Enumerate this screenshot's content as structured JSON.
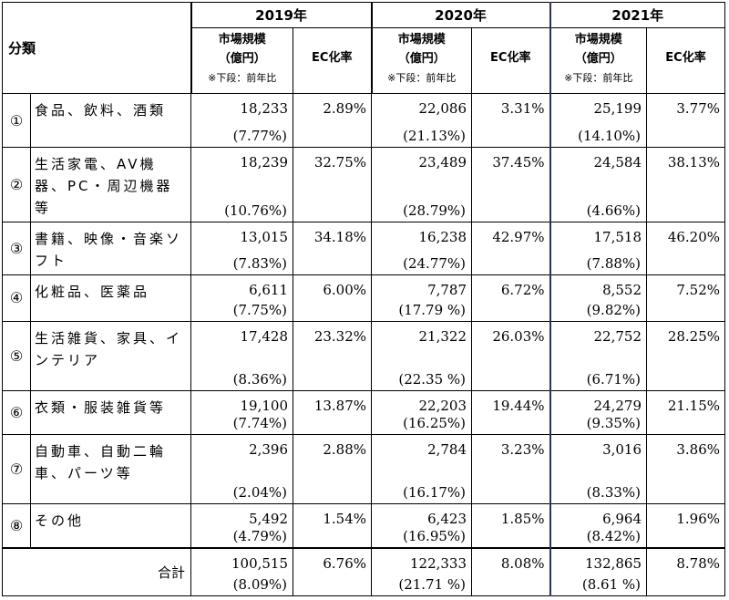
{
  "header": {
    "category_label": "分類",
    "years": [
      "2019年",
      "2020年",
      "2021年"
    ],
    "market_line1": "市場規模",
    "market_line2": "（億円）",
    "market_note": "※下段：前年比",
    "ec_label": "EC化率"
  },
  "rows": [
    {
      "num": "①",
      "name": "食品、飲料、酒類",
      "y2019": {
        "value": "18,233",
        "yoy": "(7.77%)",
        "ec": "2.89%"
      },
      "y2020": {
        "value": "22,086",
        "yoy": "(21.13%)",
        "ec": "3.31%"
      },
      "y2021": {
        "value": "25,199",
        "yoy": "(14.10%)",
        "ec": "3.77%"
      }
    },
    {
      "num": "②",
      "name": "生活家電、AV機器、PC・周辺機器等",
      "y2019": {
        "value": "18,239",
        "yoy": "(10.76%)",
        "ec": "32.75%"
      },
      "y2020": {
        "value": "23,489",
        "yoy": "(28.79%)",
        "ec": "37.45%"
      },
      "y2021": {
        "value": "24,584",
        "yoy": "(4.66%)",
        "ec": "38.13%"
      }
    },
    {
      "num": "③",
      "name": "書籍、映像・音楽ソフト",
      "y2019": {
        "value": "13,015",
        "yoy": "(7.83%)",
        "ec": "34.18%"
      },
      "y2020": {
        "value": "16,238",
        "yoy": "(24.77%)",
        "ec": "42.97%"
      },
      "y2021": {
        "value": "17,518",
        "yoy": "(7.88%)",
        "ec": "46.20%"
      }
    },
    {
      "num": "④",
      "name": "化粧品、医薬品",
      "y2019": {
        "value": "6,611",
        "yoy": "(7.75%)",
        "ec": "6.00%"
      },
      "y2020": {
        "value": "7,787",
        "yoy": "(17.79 %)",
        "ec": "6.72%"
      },
      "y2021": {
        "value": "8,552",
        "yoy": "(9.82%)",
        "ec": "7.52%"
      }
    },
    {
      "num": "⑤",
      "name": "生活雑貨、家具、インテリア",
      "y2019": {
        "value": "17,428",
        "yoy": "(8.36%)",
        "ec": "23.32%"
      },
      "y2020": {
        "value": "21,322",
        "yoy": "(22.35 %)",
        "ec": "26.03%"
      },
      "y2021": {
        "value": "22,752",
        "yoy": "(6.71%)",
        "ec": "28.25%"
      }
    },
    {
      "num": "⑥",
      "name": "衣類・服装雑貨等",
      "y2019": {
        "value": "19,100",
        "yoy": "(7.74%)",
        "ec": "13.87%"
      },
      "y2020": {
        "value": "22,203",
        "yoy": "(16.25%)",
        "ec": "19.44%"
      },
      "y2021": {
        "value": "24,279",
        "yoy": "(9.35%)",
        "ec": "21.15%"
      }
    },
    {
      "num": "⑦",
      "name": "自動車、自動二輪車、パーツ等",
      "y2019": {
        "value": "2,396",
        "yoy": "(2.04%)",
        "ec": "2.88%"
      },
      "y2020": {
        "value": "2,784",
        "yoy": "(16.17%)",
        "ec": "3.23%"
      },
      "y2021": {
        "value": "3,016",
        "yoy": "(8.33%)",
        "ec": "3.86%"
      }
    },
    {
      "num": "⑧",
      "name": "その他",
      "y2019": {
        "value": "5,492",
        "yoy": "(4.79%)",
        "ec": "1.54%"
      },
      "y2020": {
        "value": "6,423",
        "yoy": "(16.95%)",
        "ec": "1.85%"
      },
      "y2021": {
        "value": "6,964",
        "yoy": "(8.42%)",
        "ec": "1.96%"
      }
    }
  ],
  "total": {
    "label": "合計",
    "y2019": {
      "value": "100,515",
      "yoy": "(8.09%)",
      "ec": "6.76%"
    },
    "y2020": {
      "value": "122,333",
      "yoy": "(21.71 %)",
      "ec": "8.08%"
    },
    "y2021": {
      "value": "132,865",
      "yoy": "(8.61 %)",
      "ec": "8.78%"
    }
  }
}
